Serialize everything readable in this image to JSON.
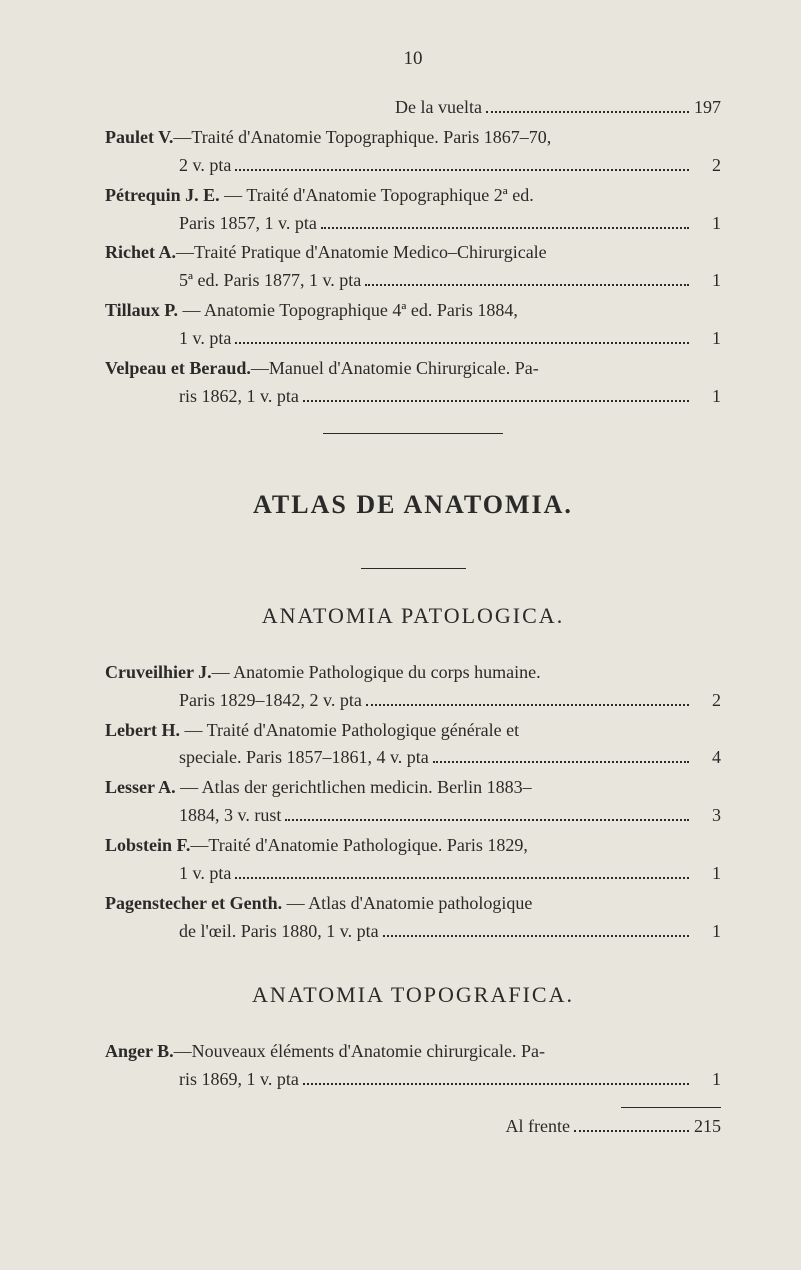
{
  "pageNumber": "10",
  "entries1": [
    {
      "lines": [
        {
          "pre_indent": true,
          "text": "De la vuelta",
          "num": "197"
        }
      ]
    },
    {
      "lines": [
        {
          "text": "<b>Paulet V.</b>—Traité d'Anatomie Topographique. Paris 1867–70,",
          "num": ""
        },
        {
          "indent": true,
          "text": "2 v. pta",
          "num": "2"
        }
      ]
    },
    {
      "lines": [
        {
          "text": "<b>Pétrequin J. E.</b> — Traité d'Anatomie Topographique 2ª ed.",
          "num": ""
        },
        {
          "indent": true,
          "text": "Paris 1857, 1 v. pta",
          "num": "1"
        }
      ]
    },
    {
      "lines": [
        {
          "text": "<b>Richet A.</b>—Traité Pratique d'Anatomie Medico–Chirurgicale",
          "num": ""
        },
        {
          "indent": true,
          "text": "5ª ed. Paris 1877, 1 v. pta",
          "num": "1"
        }
      ]
    },
    {
      "lines": [
        {
          "text": "<b>Tillaux P.</b> — Anatomie Topographique 4ª ed. Paris 1884,",
          "num": ""
        },
        {
          "indent": true,
          "text": "1 v. pta",
          "num": "1"
        }
      ]
    },
    {
      "lines": [
        {
          "text": "<b>Velpeau et Beraud.</b>—Manuel d'Anatomie Chirurgicale. Pa-",
          "num": ""
        },
        {
          "indent": true,
          "text": "ris 1862, 1 v. pta",
          "num": "1"
        }
      ]
    }
  ],
  "sectionTitle": "ATLAS DE ANATOMIA.",
  "subTitle1": "ANATOMIA PATOLOGICA.",
  "entries2": [
    {
      "lines": [
        {
          "text": "<b>Cruveilhier J.</b>— Anatomie Pathologique du corps humaine.",
          "num": ""
        },
        {
          "indent": true,
          "text": "Paris 1829–1842, 2 v. pta",
          "num": "2"
        }
      ]
    },
    {
      "lines": [
        {
          "text": "<b>Lebert H.</b> — Traité d'Anatomie Pathologique générale et",
          "num": ""
        },
        {
          "indent": true,
          "text": "speciale. Paris 1857–1861, 4 v. pta",
          "num": "4"
        }
      ]
    },
    {
      "lines": [
        {
          "text": "<b>Lesser A.</b> — Atlas der gerichtlichen medicin. Berlin 1883–",
          "num": ""
        },
        {
          "indent": true,
          "text": "1884, 3 v. rust",
          "num": "3"
        }
      ]
    },
    {
      "lines": [
        {
          "text": "<b>Lobstein F.</b>—Traité d'Anatomie Pathologique. Paris 1829,",
          "num": ""
        },
        {
          "indent": true,
          "text": "1 v. pta",
          "num": "1"
        }
      ]
    },
    {
      "lines": [
        {
          "text": "<b>Pagenstecher et Genth.</b> — Atlas d'Anatomie pathologique",
          "num": ""
        },
        {
          "indent": true,
          "text": "de l'œil. Paris 1880, 1 v. pta",
          "num": "1"
        }
      ]
    }
  ],
  "subTitle2": "ANATOMIA TOPOGRAFICA.",
  "entries3": [
    {
      "lines": [
        {
          "text": "<b>Anger B.</b>—Nouveaux éléments d'Anatomie chirurgicale. Pa-",
          "num": ""
        },
        {
          "indent": true,
          "text": "ris 1869, 1 v. pta",
          "num": "1"
        }
      ]
    }
  ],
  "footerText": "Al frente",
  "footerNum": "215"
}
